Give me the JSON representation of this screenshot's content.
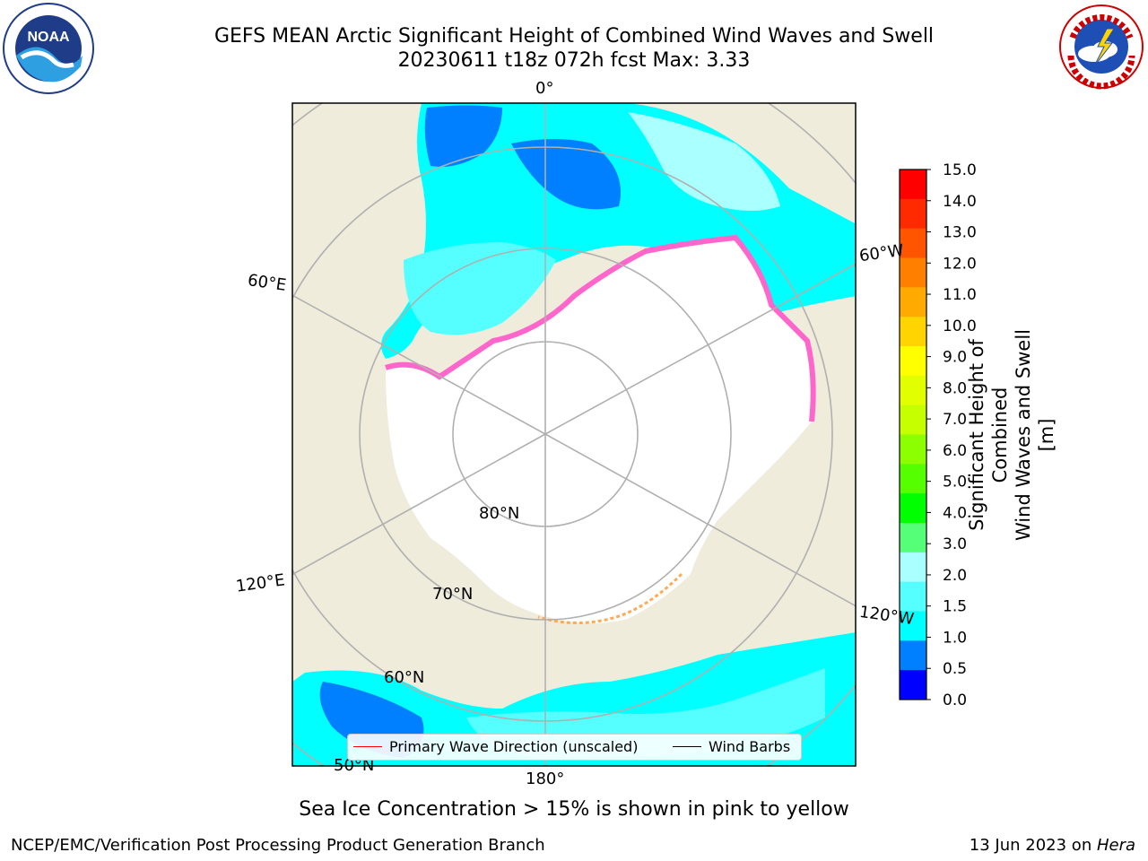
{
  "title": {
    "line1": "GEFS MEAN Arctic Significant Height of Combined Wind Waves and Swell",
    "line2": "20230611 t18z 072h fcst   Max: 3.33"
  },
  "logos": {
    "left": {
      "name": "NOAA",
      "text": "NOAA"
    },
    "right": {
      "name": "National Weather Service",
      "text": "NATIONAL WEATHER SERVICE"
    }
  },
  "map": {
    "projection": "north-polar-stereographic",
    "land_color": "#efecdc",
    "ice_color": "#ffffff",
    "grid_color": "#b0b0b0",
    "longitude_labels": {
      "top": "0°",
      "right_upper": "60°W",
      "left_upper": "60°E",
      "left_lower": "120°E",
      "right_lower": "120°W",
      "bottom": "180°"
    },
    "latitude_labels": {
      "lat80": "80°N",
      "lat70": "70°N",
      "lat60": "60°N",
      "lat50": "50°N"
    },
    "legend": {
      "primary_wave": "Primary Wave Direction (unscaled)",
      "wind_barbs": "Wind Barbs",
      "wave_color": "#ff0000",
      "barb_color": "#000000"
    }
  },
  "colorbar": {
    "label": "Significant Height of Combined Wind Waves and Swell [m]",
    "label_line1": "Significant Height of Combined",
    "label_line2": "Wind Waves and Swell [m]",
    "ticks": [
      "15.0",
      "14.0",
      "13.0",
      "12.0",
      "11.0",
      "10.0",
      "9.0",
      "8.0",
      "7.0",
      "6.0",
      "5.0",
      "4.0",
      "3.0",
      "2.0",
      "1.5",
      "1.0",
      "0.5",
      "0.0"
    ],
    "colors": [
      "#ff0000",
      "#ff2a00",
      "#ff5500",
      "#ff7f00",
      "#ffaa00",
      "#ffd400",
      "#ffff00",
      "#e2ff00",
      "#c6ff00",
      "#8cff00",
      "#55ff00",
      "#00ff00",
      "#55ff78",
      "#aaffff",
      "#55ffff",
      "#00ffff",
      "#0080ff",
      "#0000ff"
    ]
  },
  "bottom_note": "Sea Ice Concentration > 15% is shown in pink to yellow",
  "footer": {
    "left": "NCEP/EMC/Verification Post Processing Product Generation Branch",
    "right_prefix": "13 Jun 2023 on ",
    "right_machine": "Hera"
  }
}
